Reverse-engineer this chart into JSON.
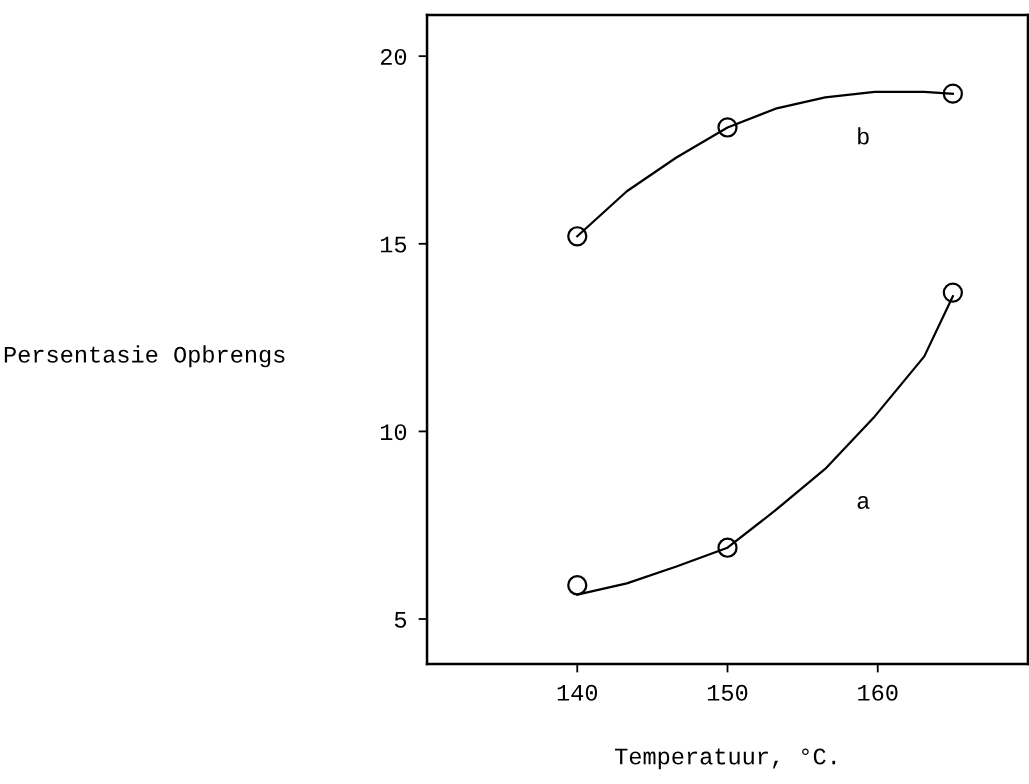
{
  "chart_data": {
    "type": "scatter",
    "xlabel": "Temperatuur, °C.",
    "ylabel": "Persentasie Opbrengs",
    "series": [
      {
        "color": "#000000",
        "marker": "circle",
        "x": [
          140,
          150,
          165
        ],
        "values": [
          15.2,
          18.1,
          19.0
        ]
      },
      {
        "color": "#000000",
        "marker": "circle",
        "x": [
          140,
          150,
          165
        ],
        "values": [
          5.9,
          6.9,
          13.7
        ]
      },
      {
        "type": "line",
        "name": "b",
        "color": "#000000",
        "x": [
          140,
          143.3,
          146.6,
          150,
          153.2,
          156.5,
          159.8,
          163.1,
          165
        ],
        "values": [
          15.2,
          16.4,
          17.3,
          18.1,
          18.6,
          18.9,
          19.05,
          19.05,
          19.0
        ]
      },
      {
        "type": "line",
        "name": "a",
        "color": "#000000",
        "x": [
          140,
          143.3,
          146.6,
          150,
          153.2,
          156.5,
          159.8,
          163.1,
          165
        ],
        "values": [
          5.65,
          5.95,
          6.4,
          6.9,
          7.9,
          9.0,
          10.4,
          12.0,
          13.6
        ]
      }
    ],
    "xlim": [
      130,
      170
    ],
    "ylim": [
      3.8,
      21.1
    ],
    "xticks": [
      140,
      150,
      160
    ],
    "yticks": [
      5,
      10,
      15,
      20
    ],
    "grid": false,
    "legend": false
  }
}
